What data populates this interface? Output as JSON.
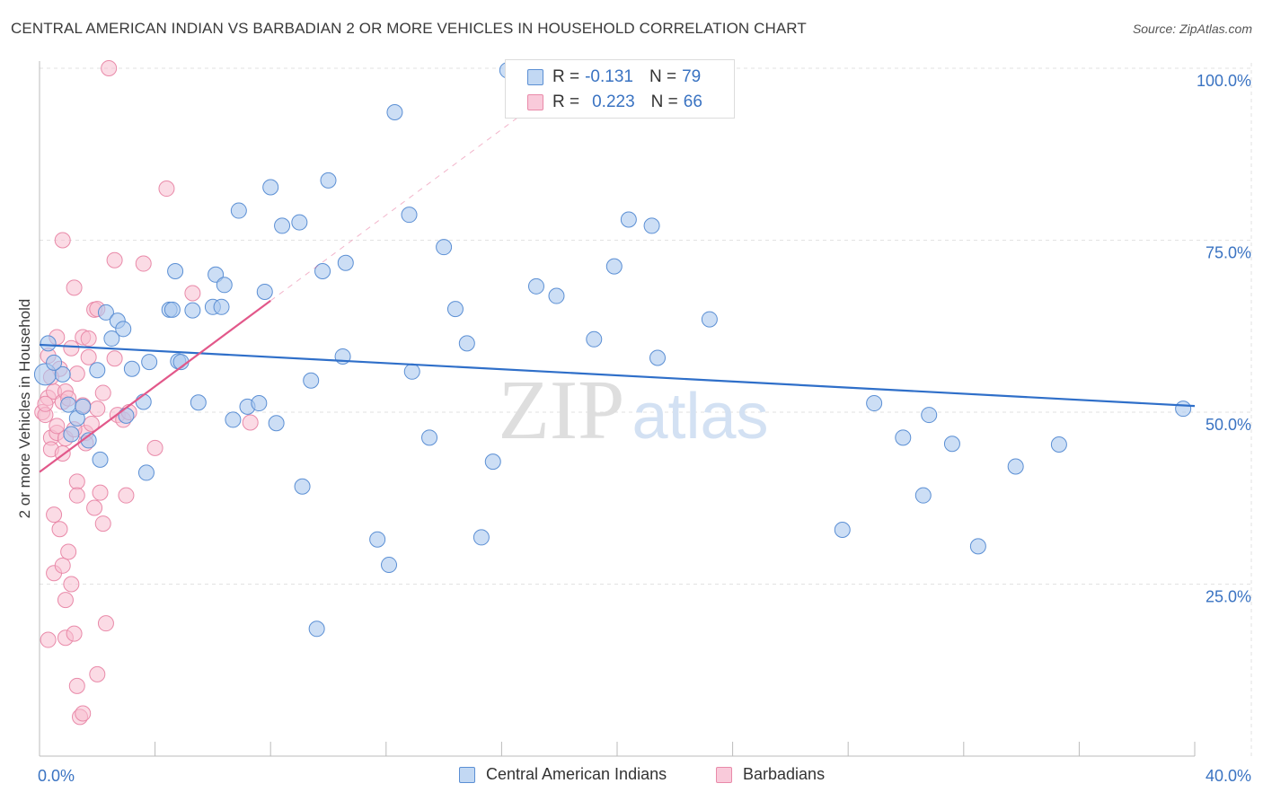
{
  "title": "CENTRAL AMERICAN INDIAN VS BARBADIAN 2 OR MORE VEHICLES IN HOUSEHOLD CORRELATION CHART",
  "source": "Source: ZipAtlas.com",
  "watermark": {
    "part1": "ZIP",
    "part2": "atlas"
  },
  "legend_top": {
    "rows": [
      {
        "r_label": "R =",
        "r_value": "-0.131",
        "n_label": "N =",
        "n_value": "79"
      },
      {
        "r_label": "R =",
        "r_value": "0.223",
        "n_label": "N =",
        "n_value": "66"
      }
    ]
  },
  "colors": {
    "blue_fill": "#aac8ee",
    "blue_stroke": "#5b8fd4",
    "blue_line": "#2f6fc9",
    "pink_fill": "#f7bdd0",
    "pink_stroke": "#e98aa9",
    "pink_line": "#e2588a",
    "axis_text": "#3a73c2",
    "grid": "#e2e2e2"
  },
  "chart_data": {
    "type": "scatter",
    "title": "CENTRAL AMERICAN INDIAN VS BARBADIAN 2 OR MORE VEHICLES IN HOUSEHOLD CORRELATION CHART",
    "xlabel": "",
    "ylabel": "2 or more Vehicles in Household",
    "xlim": [
      0,
      40
    ],
    "ylim": [
      0,
      100
    ],
    "x_tick_labels": [
      "0.0%",
      "40.0%"
    ],
    "y_tick_labels": [
      "100.0%",
      "75.0%",
      "50.0%",
      "25.0%"
    ],
    "y_ticks": [
      100,
      75,
      50,
      25
    ],
    "grid": true,
    "legend": "bottom-center",
    "series": [
      {
        "name": "Central American Indians",
        "r": -0.131,
        "n": 79,
        "trend": {
          "x": [
            0,
            40
          ],
          "y": [
            59.8,
            50.9
          ]
        },
        "points": [
          [
            0.2,
            55.5
          ],
          [
            0.8,
            55.5
          ],
          [
            1.0,
            51.1
          ],
          [
            1.3,
            49.1
          ],
          [
            1.5,
            50.8
          ],
          [
            1.7,
            45.9
          ],
          [
            2.0,
            56.1
          ],
          [
            2.1,
            43.1
          ],
          [
            2.3,
            64.5
          ],
          [
            2.5,
            60.7
          ],
          [
            2.7,
            63.3
          ],
          [
            2.9,
            62.1
          ],
          [
            3.2,
            56.3
          ],
          [
            3.6,
            51.5
          ],
          [
            3.7,
            41.2
          ],
          [
            3.8,
            57.3
          ],
          [
            4.5,
            64.9
          ],
          [
            4.6,
            64.9
          ],
          [
            4.7,
            70.5
          ],
          [
            4.8,
            57.4
          ],
          [
            4.9,
            57.3
          ],
          [
            5.3,
            64.8
          ],
          [
            5.5,
            51.4
          ],
          [
            6.0,
            65.3
          ],
          [
            6.1,
            70.0
          ],
          [
            6.3,
            65.3
          ],
          [
            6.4,
            68.5
          ],
          [
            6.7,
            48.9
          ],
          [
            6.9,
            79.3
          ],
          [
            7.2,
            50.8
          ],
          [
            7.6,
            51.3
          ],
          [
            7.8,
            67.5
          ],
          [
            8.0,
            82.7
          ],
          [
            8.2,
            48.4
          ],
          [
            8.4,
            77.1
          ],
          [
            9.0,
            77.6
          ],
          [
            9.1,
            39.2
          ],
          [
            9.4,
            54.6
          ],
          [
            9.6,
            18.5
          ],
          [
            9.8,
            70.5
          ],
          [
            10.0,
            83.7
          ],
          [
            10.5,
            58.1
          ],
          [
            10.6,
            71.7
          ],
          [
            11.7,
            31.5
          ],
          [
            12.1,
            27.8
          ],
          [
            12.3,
            93.6
          ],
          [
            12.8,
            78.7
          ],
          [
            12.9,
            55.9
          ],
          [
            13.5,
            46.3
          ],
          [
            14.0,
            74.0
          ],
          [
            14.4,
            65.0
          ],
          [
            15.3,
            31.8
          ],
          [
            15.7,
            42.8
          ],
          [
            16.2,
            99.7
          ],
          [
            17.2,
            68.3
          ],
          [
            17.9,
            66.9
          ],
          [
            19.2,
            60.6
          ],
          [
            19.8,
            99.8
          ],
          [
            19.9,
            71.2
          ],
          [
            20.4,
            78.0
          ],
          [
            21.2,
            77.1
          ],
          [
            21.4,
            57.9
          ],
          [
            23.0,
            99.9
          ],
          [
            23.2,
            63.5
          ],
          [
            27.8,
            32.9
          ],
          [
            28.9,
            51.3
          ],
          [
            29.9,
            46.3
          ],
          [
            30.6,
            37.9
          ],
          [
            30.8,
            49.6
          ],
          [
            31.6,
            45.4
          ],
          [
            32.5,
            30.5
          ],
          [
            33.8,
            42.1
          ],
          [
            35.3,
            45.3
          ],
          [
            39.6,
            50.5
          ],
          [
            0.3,
            60.0
          ],
          [
            0.5,
            57.2
          ],
          [
            1.1,
            46.8
          ],
          [
            14.8,
            60.0
          ],
          [
            3.0,
            49.5
          ]
        ]
      },
      {
        "name": "Barbadians",
        "r": 0.223,
        "n": 66,
        "trend": {
          "x": [
            0,
            8
          ],
          "y": [
            41.3,
            66.2
          ]
        },
        "points": [
          [
            0.1,
            50.0
          ],
          [
            0.2,
            49.6
          ],
          [
            0.3,
            52.1
          ],
          [
            0.3,
            16.9
          ],
          [
            0.4,
            46.3
          ],
          [
            0.4,
            44.6
          ],
          [
            0.5,
            53.0
          ],
          [
            0.5,
            35.1
          ],
          [
            0.5,
            26.6
          ],
          [
            0.6,
            47.0
          ],
          [
            0.6,
            60.9
          ],
          [
            0.7,
            56.3
          ],
          [
            0.7,
            33.0
          ],
          [
            0.8,
            27.7
          ],
          [
            0.8,
            75.0
          ],
          [
            0.8,
            51.5
          ],
          [
            0.9,
            46.2
          ],
          [
            0.9,
            53.0
          ],
          [
            0.9,
            17.2
          ],
          [
            0.9,
            22.7
          ],
          [
            1.0,
            29.7
          ],
          [
            1.1,
            59.3
          ],
          [
            1.1,
            25.0
          ],
          [
            1.2,
            68.1
          ],
          [
            1.2,
            17.8
          ],
          [
            1.3,
            39.9
          ],
          [
            1.3,
            10.2
          ],
          [
            1.3,
            37.9
          ],
          [
            1.3,
            55.6
          ],
          [
            1.4,
            5.7
          ],
          [
            1.5,
            6.2
          ],
          [
            1.5,
            60.9
          ],
          [
            1.6,
            47.0
          ],
          [
            1.6,
            45.5
          ],
          [
            1.7,
            60.7
          ],
          [
            1.7,
            58.0
          ],
          [
            1.8,
            48.3
          ],
          [
            1.9,
            36.1
          ],
          [
            1.9,
            64.9
          ],
          [
            2.0,
            65.0
          ],
          [
            2.0,
            11.9
          ],
          [
            2.1,
            38.3
          ],
          [
            2.2,
            33.8
          ],
          [
            2.2,
            52.8
          ],
          [
            2.3,
            19.3
          ],
          [
            2.4,
            100.0
          ],
          [
            2.6,
            72.1
          ],
          [
            2.7,
            49.6
          ],
          [
            2.9,
            48.9
          ],
          [
            3.0,
            37.9
          ],
          [
            3.1,
            50.0
          ],
          [
            3.6,
            71.6
          ],
          [
            4.0,
            44.8
          ],
          [
            4.4,
            82.5
          ],
          [
            5.3,
            67.3
          ],
          [
            7.3,
            48.5
          ],
          [
            0.2,
            51.2
          ],
          [
            0.4,
            55.1
          ],
          [
            1.0,
            52.0
          ],
          [
            1.5,
            51.0
          ],
          [
            2.6,
            57.8
          ],
          [
            0.3,
            58.2
          ],
          [
            0.6,
            48.0
          ],
          [
            1.2,
            47.5
          ],
          [
            0.8,
            44.0
          ],
          [
            2.0,
            50.5
          ]
        ]
      }
    ]
  },
  "bottom_legend": {
    "items": [
      "Central American Indians",
      "Barbadians"
    ]
  }
}
